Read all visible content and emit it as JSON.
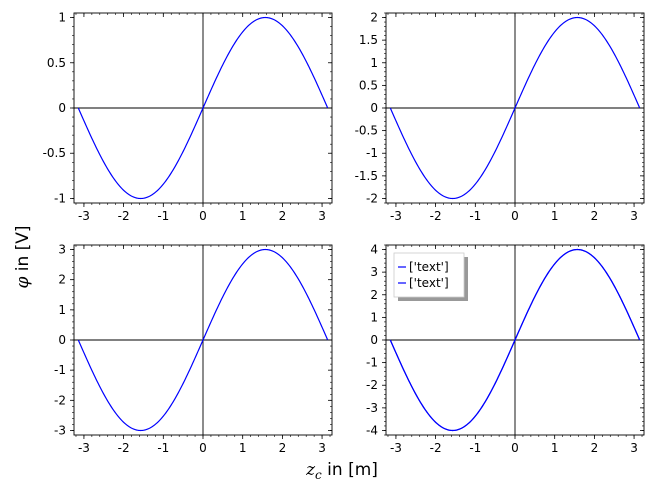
{
  "figure": {
    "xlabel_prefix": "z",
    "xlabel_sub": "c",
    "xlabel_suffix": " in [m]",
    "ylabel_prefix": "φ",
    "ylabel_suffix": " in [V]"
  },
  "colors": {
    "line": "#0000ff",
    "axis": "#000000",
    "frame": "#000000"
  },
  "chart_data": [
    {
      "type": "line",
      "function": "1*sin(x)",
      "xlim": [
        -3.25,
        3.25
      ],
      "ylim": [
        -1.05,
        1.05
      ],
      "xticks": [
        -3,
        -2,
        -1,
        0,
        1,
        2,
        3
      ],
      "xtick_labels": [
        "-3",
        "-2",
        "-1",
        "0",
        "1",
        "2",
        "3"
      ],
      "yticks": [
        -1,
        -0.5,
        0,
        0.5,
        1
      ],
      "ytick_labels": [
        "-1",
        "-0.5",
        "0",
        "0.5",
        "1"
      ],
      "x": [
        -3.1416,
        -2.3562,
        -1.5708,
        -0.7854,
        0,
        0.7854,
        1.5708,
        2.3562,
        3.1416
      ],
      "series": [
        {
          "values": [
            0,
            -0.707,
            -1,
            -0.707,
            0,
            0.707,
            1,
            0.707,
            0
          ]
        }
      ],
      "grid": false
    },
    {
      "type": "line",
      "function": "2*sin(x)",
      "xlim": [
        -3.25,
        3.25
      ],
      "ylim": [
        -2.1,
        2.1
      ],
      "xticks": [
        -3,
        -2,
        -1,
        0,
        1,
        2,
        3
      ],
      "xtick_labels": [
        "-3",
        "-2",
        "-1",
        "0",
        "1",
        "2",
        "3"
      ],
      "yticks": [
        -2,
        -1.5,
        -1,
        -0.5,
        0,
        0.5,
        1,
        1.5,
        2
      ],
      "ytick_labels": [
        "-2",
        "-1.5",
        "-1",
        "-0.5",
        "0",
        "0.5",
        "1",
        "1.5",
        "2"
      ],
      "x": [
        -3.1416,
        -2.3562,
        -1.5708,
        -0.7854,
        0,
        0.7854,
        1.5708,
        2.3562,
        3.1416
      ],
      "series": [
        {
          "values": [
            0,
            -1.414,
            -2,
            -1.414,
            0,
            1.414,
            2,
            1.414,
            0
          ]
        }
      ],
      "grid": false
    },
    {
      "type": "line",
      "function": "3*sin(x)",
      "xlim": [
        -3.25,
        3.25
      ],
      "ylim": [
        -3.15,
        3.15
      ],
      "xticks": [
        -3,
        -2,
        -1,
        0,
        1,
        2,
        3
      ],
      "xtick_labels": [
        "-3",
        "-2",
        "-1",
        "0",
        "1",
        "2",
        "3"
      ],
      "yticks": [
        -3,
        -2,
        -1,
        0,
        1,
        2,
        3
      ],
      "ytick_labels": [
        "-3",
        "-2",
        "-1",
        "0",
        "1",
        "2",
        "3"
      ],
      "x": [
        -3.1416,
        -2.3562,
        -1.5708,
        -0.7854,
        0,
        0.7854,
        1.5708,
        2.3562,
        3.1416
      ],
      "series": [
        {
          "values": [
            0,
            -2.121,
            -3,
            -2.121,
            0,
            2.121,
            3,
            2.121,
            0
          ]
        }
      ],
      "grid": false
    },
    {
      "type": "line",
      "function": "4*sin(x)",
      "xlim": [
        -3.25,
        3.25
      ],
      "ylim": [
        -4.2,
        4.2
      ],
      "xticks": [
        -3,
        -2,
        -1,
        0,
        1,
        2,
        3
      ],
      "xtick_labels": [
        "-3",
        "-2",
        "-1",
        "0",
        "1",
        "2",
        "3"
      ],
      "yticks": [
        -4,
        -3,
        -2,
        -1,
        0,
        1,
        2,
        3,
        4
      ],
      "ytick_labels": [
        "-4",
        "-3",
        "-2",
        "-1",
        "0",
        "1",
        "2",
        "3",
        "4"
      ],
      "x": [
        -3.1416,
        -2.3562,
        -1.5708,
        -0.7854,
        0,
        0.7854,
        1.5708,
        2.3562,
        3.1416
      ],
      "series": [
        {
          "name": "['text']",
          "values": [
            0,
            -2.828,
            -4,
            -2.828,
            0,
            2.828,
            4,
            2.828,
            0
          ]
        },
        {
          "name": "['text']",
          "values": [
            0,
            -2.828,
            -4,
            -2.828,
            0,
            2.828,
            4,
            2.828,
            0
          ]
        }
      ],
      "legend": {
        "entries": [
          "['text']",
          "['text']"
        ],
        "placement": "top-left"
      },
      "grid": false
    }
  ]
}
